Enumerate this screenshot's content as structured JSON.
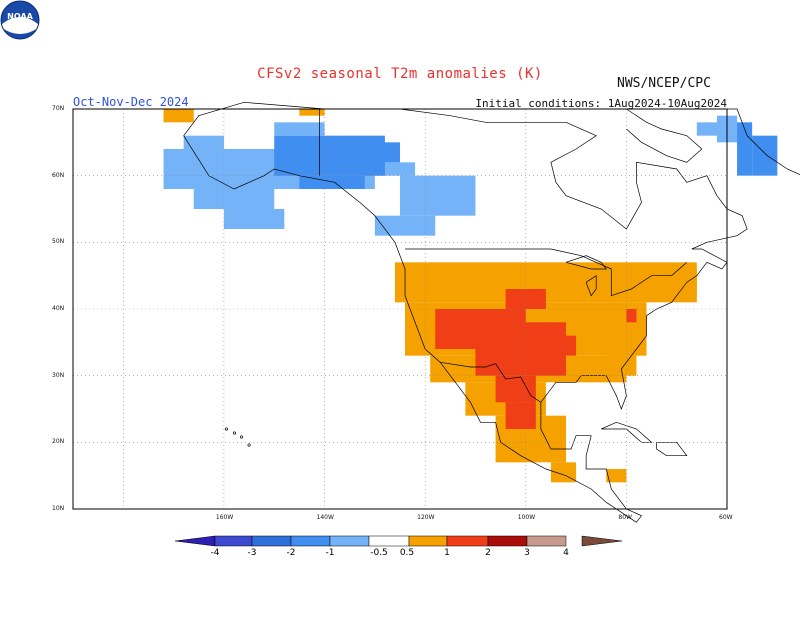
{
  "title": "CFSv2  seasonal  T2m  anomalies  (K)",
  "agency": "NWS/NCEP/CPC",
  "period": "Oct-Nov-Dec 2024",
  "initial_conditions": "Initial conditions:  1Aug2024-10Aug2024",
  "logo_text": "NOAA",
  "lat_labels": [
    "70N",
    "60N",
    "50N",
    "40N",
    "30N",
    "20N",
    "10N"
  ],
  "lon_labels": [
    "160W",
    "140W",
    "120W",
    "100W",
    "80W",
    "60W"
  ],
  "colorbar": {
    "labels": [
      "-4",
      "-3",
      "-2",
      "-1",
      "-0.5",
      "0.5",
      "1",
      "2",
      "3",
      "4"
    ],
    "colors": [
      "#2a1fae",
      "#3d4ad0",
      "#2f6fdc",
      "#3f8ef0",
      "#74b3f7",
      "#ffffff",
      "#f5a100",
      "#f03e17",
      "#a90e0b",
      "#c79a8e",
      "#7a4b3a"
    ]
  },
  "chart_data": {
    "type": "heatmap",
    "title": "CFSv2  seasonal  T2m  anomalies  (K)",
    "variable": "2m temperature anomaly (K)",
    "season": "Oct-Nov-Dec 2024",
    "region": "North America",
    "lat_range": [
      10,
      70
    ],
    "lon_range": [
      -190,
      -60
    ],
    "levels": [
      -4,
      -3,
      -2,
      -1,
      -0.5,
      0.5,
      1,
      2,
      3,
      4
    ],
    "regions": [
      {
        "name": "Alaska / NW Canada",
        "anomaly_range": [
          -1,
          -0.5
        ]
      },
      {
        "name": "SE Alaska interior",
        "anomaly_range": [
          -2,
          -1
        ]
      },
      {
        "name": "Northern Quebec / Labrador",
        "anomaly_range": [
          -2,
          -0.5
        ]
      },
      {
        "name": "Contiguous US west/north-central",
        "anomaly_range": [
          0.5,
          1
        ]
      },
      {
        "name": "US Southwest / Southern Plains / Northern Mexico",
        "anomaly_range": [
          1,
          2
        ]
      },
      {
        "name": "US East / Great Lakes",
        "anomaly_range": [
          0.5,
          1
        ]
      },
      {
        "name": "Southern Mexico",
        "anomaly_range": [
          0.5,
          1
        ]
      }
    ]
  }
}
